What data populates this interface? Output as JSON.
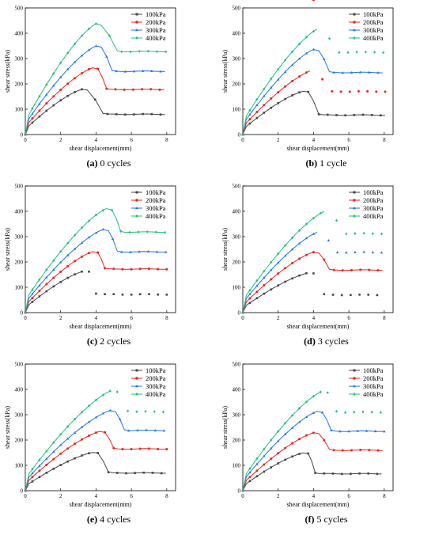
{
  "colors": {
    "s100": "#444444",
    "s200": "#e8241f",
    "s300": "#1f74e0",
    "s400": "#1fbf78"
  },
  "chart_data": [
    {
      "type": "line",
      "caption_letter": "(a)",
      "caption_text": " 0 cycles",
      "xlabel": "shear displacement(mm)",
      "ylabel": "shear stress(kPa)",
      "xlim": [
        0,
        8.5
      ],
      "ylim": [
        0,
        500
      ],
      "xticks": [
        "0",
        "2",
        "4",
        "6",
        "8"
      ],
      "yticks": [
        "0",
        "100",
        "200",
        "300",
        "400",
        "500"
      ],
      "legend_position": "top-right",
      "series": [
        {
          "name": "100kPa",
          "peak_x": 3.3,
          "peak": 180,
          "resid": 80,
          "drop_end": 4.4
        },
        {
          "name": "200kPa",
          "peak_x": 3.9,
          "peak": 265,
          "resid": 178,
          "drop_end": 4.6
        },
        {
          "name": "300kPa",
          "peak_x": 4.1,
          "peak": 352,
          "resid": 250,
          "drop_end": 4.9
        },
        {
          "name": "400kPa",
          "peak_x": 4.1,
          "peak": 440,
          "resid": 328,
          "drop_end": 5.2
        }
      ]
    },
    {
      "type": "line",
      "caption_letter": "(b)",
      "caption_text": " 1 cycle",
      "xlabel": "shear displacement(mm)",
      "ylabel": "shear stress(kPa)",
      "xlim": [
        0,
        8.5
      ],
      "ylim": [
        0,
        500
      ],
      "xticks": [
        "0",
        "2",
        "4",
        "6",
        "8"
      ],
      "yticks": [
        "0",
        "100",
        "200",
        "300",
        "400",
        "500"
      ],
      "legend_position": "top-right",
      "series": [
        {
          "name": "100kPa",
          "peak_x": 3.5,
          "peak": 172,
          "resid": 77,
          "drop_end": 4.3
        },
        {
          "name": "200kPa",
          "peak_x": 4.0,
          "peak": 255,
          "resid": 170,
          "drop_end": 4.8
        },
        {
          "name": "300kPa",
          "peak_x": 4.1,
          "peak": 338,
          "resid": 245,
          "drop_end": 4.9
        },
        {
          "name": "400kPa",
          "peak_x": 4.4,
          "peak": 422,
          "resid": 325,
          "drop_end": 5.2
        }
      ]
    },
    {
      "type": "line",
      "caption_letter": "(c)",
      "caption_text": " 2 cycles",
      "xlabel": "shear displacement(mm)",
      "ylabel": "shear stress(kPa)",
      "xlim": [
        0,
        8.5
      ],
      "ylim": [
        0,
        500
      ],
      "xticks": [
        "0",
        "2",
        "4",
        "6",
        "8"
      ],
      "yticks": [
        "0",
        "100",
        "200",
        "300",
        "400",
        "500"
      ],
      "legend_position": "top-right",
      "series": [
        {
          "name": "100kPa",
          "peak_x": 3.4,
          "peak": 165,
          "resid": 72,
          "drop_end": 4.0
        },
        {
          "name": "200kPa",
          "peak_x": 3.9,
          "peak": 242,
          "resid": 172,
          "drop_end": 4.5
        },
        {
          "name": "300kPa",
          "peak_x": 4.5,
          "peak": 330,
          "resid": 240,
          "drop_end": 5.2
        },
        {
          "name": "400kPa",
          "peak_x": 4.7,
          "peak": 413,
          "resid": 318,
          "drop_end": 5.4
        }
      ]
    },
    {
      "type": "line",
      "caption_letter": "(d)",
      "caption_text": " 3 cycles",
      "xlabel": "shear displacement(mm)",
      "ylabel": "shear stress(kPa)",
      "xlim": [
        0,
        8.5
      ],
      "ylim": [
        0,
        500
      ],
      "xticks": [
        "0",
        "2",
        "4",
        "6",
        "8"
      ],
      "yticks": [
        "0",
        "100",
        "200",
        "300",
        "400",
        "500"
      ],
      "legend_position": "top-right",
      "series": [
        {
          "name": "100kPa",
          "peak_x": 3.8,
          "peak": 158,
          "resid": 70,
          "drop_end": 4.6
        },
        {
          "name": "200kPa",
          "peak_x": 4.1,
          "peak": 240,
          "resid": 168,
          "drop_end": 4.9
        },
        {
          "name": "300kPa",
          "peak_x": 4.4,
          "peak": 322,
          "resid": 238,
          "drop_end": 5.1
        },
        {
          "name": "400kPa",
          "peak_x": 4.8,
          "peak": 405,
          "resid": 312,
          "drop_end": 5.6
        }
      ]
    },
    {
      "type": "line",
      "caption_letter": "(e)",
      "caption_text": " 4 cycles",
      "xlabel": "shear displacement(mm)",
      "ylabel": "shear stress(kPa)",
      "xlim": [
        0,
        8.5
      ],
      "ylim": [
        0,
        500
      ],
      "xticks": [
        "0",
        "2",
        "4",
        "6",
        "8"
      ],
      "yticks": [
        "0",
        "100",
        "200",
        "300",
        "400",
        "500"
      ],
      "legend_position": "top-right",
      "series": [
        {
          "name": "100kPa",
          "peak_x": 3.9,
          "peak": 152,
          "resid": 70,
          "drop_end": 4.7
        },
        {
          "name": "200kPa",
          "peak_x": 4.3,
          "peak": 235,
          "resid": 165,
          "drop_end": 5.0
        },
        {
          "name": "300kPa",
          "peak_x": 4.9,
          "peak": 318,
          "resid": 238,
          "drop_end": 5.6
        },
        {
          "name": "400kPa",
          "peak_x": 5.0,
          "peak": 398,
          "resid": 312,
          "drop_end": 5.8
        }
      ]
    },
    {
      "type": "line",
      "caption_letter": "(f)",
      "caption_text": " 5 cycles",
      "xlabel": "shear displacement(mm)",
      "ylabel": "shear stress(kPa)",
      "xlim": [
        0,
        8.5
      ],
      "ylim": [
        0,
        500
      ],
      "xticks": [
        "0",
        "2",
        "4",
        "6",
        "8"
      ],
      "yticks": [
        "0",
        "100",
        "200",
        "300",
        "400",
        "500"
      ],
      "legend_position": "top-right",
      "series": [
        {
          "name": "100kPa",
          "peak_x": 3.5,
          "peak": 150,
          "resid": 67,
          "drop_end": 4.1
        },
        {
          "name": "200kPa",
          "peak_x": 4.1,
          "peak": 230,
          "resid": 160,
          "drop_end": 4.9
        },
        {
          "name": "300kPa",
          "peak_x": 4.3,
          "peak": 315,
          "resid": 235,
          "drop_end": 5.0
        },
        {
          "name": "400kPa",
          "peak_x": 4.6,
          "peak": 395,
          "resid": 310,
          "drop_end": 5.3
        }
      ]
    }
  ]
}
